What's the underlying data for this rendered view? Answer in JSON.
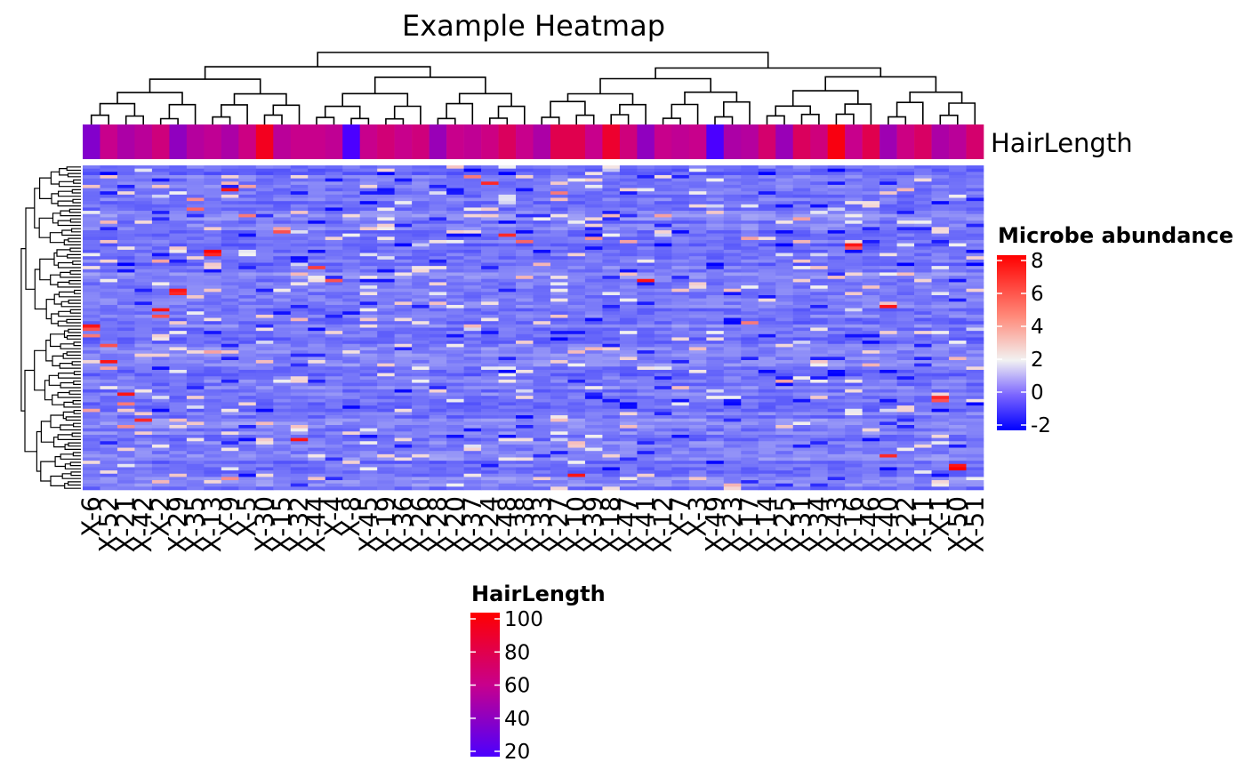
{
  "chart_data": {
    "type": "heatmap",
    "title": "Example Heatmap",
    "annotation_label": "HairLength",
    "columns": [
      "X-6",
      "X-52",
      "X-21",
      "X-42",
      "X-2",
      "X-29",
      "X-35",
      "X-13",
      "X-9",
      "X-5",
      "X-30",
      "X-15",
      "X-32",
      "X-44",
      "X-4",
      "X-8",
      "X-45",
      "X-19",
      "X-36",
      "X-26",
      "X-28",
      "X-20",
      "X-37",
      "X-24",
      "X-48",
      "X-38",
      "X-33",
      "X-27",
      "X-10",
      "X-39",
      "X-18",
      "X-47",
      "X-41",
      "X-12",
      "X-7",
      "X-3",
      "X-49",
      "X-23",
      "X-17",
      "X-14",
      "X-25",
      "X-31",
      "X-34",
      "X-43",
      "X-16",
      "X-46",
      "X-40",
      "X-22",
      "X-11",
      "X-1",
      "X-50",
      "X-51"
    ],
    "hair_length": [
      30,
      55,
      45,
      50,
      60,
      35,
      48,
      52,
      45,
      58,
      90,
      50,
      55,
      55,
      52,
      10,
      55,
      62,
      55,
      60,
      38,
      55,
      52,
      58,
      70,
      55,
      45,
      75,
      75,
      55,
      85,
      60,
      35,
      55,
      52,
      55,
      10,
      45,
      48,
      65,
      38,
      70,
      60,
      95,
      55,
      75,
      40,
      58,
      68,
      45,
      50,
      65
    ],
    "row_count": 100,
    "abundance_range": [
      -2,
      8
    ],
    "abundance_baseline": 0,
    "highlights": [
      {
        "r": 49,
        "c": 0,
        "v": 7.5
      },
      {
        "r": 50,
        "c": 0,
        "v": 6.0
      },
      {
        "r": 52,
        "c": 0,
        "v": 5.0
      },
      {
        "r": 75,
        "c": 0,
        "v": 4.0
      },
      {
        "r": 55,
        "c": 1,
        "v": 6.0
      },
      {
        "r": 60,
        "c": 1,
        "v": 7.5
      },
      {
        "r": 62,
        "c": 1,
        "v": 4.0
      },
      {
        "r": 17,
        "c": 1,
        "v": 3.5
      },
      {
        "r": 70,
        "c": 2,
        "v": 7.5
      },
      {
        "r": 73,
        "c": 2,
        "v": 5.0
      },
      {
        "r": 75,
        "c": 2,
        "v": 3.0
      },
      {
        "r": 80,
        "c": 2,
        "v": 4.5
      },
      {
        "r": 78,
        "c": 3,
        "v": 7.0
      },
      {
        "r": 76,
        "c": 3,
        "v": 3.0
      },
      {
        "r": 44,
        "c": 4,
        "v": 7.5
      },
      {
        "r": 46,
        "c": 4,
        "v": 6.0
      },
      {
        "r": 29,
        "c": 4,
        "v": 4.0
      },
      {
        "r": 38,
        "c": 5,
        "v": 7.5
      },
      {
        "r": 39,
        "c": 5,
        "v": 7.0
      },
      {
        "r": 48,
        "c": 5,
        "v": 3.0
      },
      {
        "r": 10,
        "c": 6,
        "v": 4.5
      },
      {
        "r": 13,
        "c": 6,
        "v": 5.5
      },
      {
        "r": 26,
        "c": 7,
        "v": 8.0
      },
      {
        "r": 27,
        "c": 7,
        "v": 7.0
      },
      {
        "r": 30,
        "c": 7,
        "v": 3.0
      },
      {
        "r": 57,
        "c": 7,
        "v": 4.0
      },
      {
        "r": 7,
        "c": 8,
        "v": 7.5
      },
      {
        "r": 5,
        "c": 8,
        "v": 3.5
      },
      {
        "r": 96,
        "c": 8,
        "v": 4.5
      },
      {
        "r": 15,
        "c": 9,
        "v": 5.0
      },
      {
        "r": 6,
        "c": 9,
        "v": 4.0
      },
      {
        "r": 19,
        "c": 11,
        "v": 4.0
      },
      {
        "r": 20,
        "c": 11,
        "v": 6.0
      },
      {
        "r": 47,
        "c": 12,
        "v": 3.5
      },
      {
        "r": 84,
        "c": 12,
        "v": 7.5
      },
      {
        "r": 31,
        "c": 13,
        "v": 6.5
      },
      {
        "r": 35,
        "c": 14,
        "v": 6.0
      },
      {
        "r": 23,
        "c": 25,
        "v": 5.5
      },
      {
        "r": 3,
        "c": 22,
        "v": 5.0
      },
      {
        "r": 5,
        "c": 23,
        "v": 7.0
      },
      {
        "r": 21,
        "c": 24,
        "v": 7.0
      },
      {
        "r": 30,
        "c": 26,
        "v": 3.5
      },
      {
        "r": 8,
        "c": 27,
        "v": 5.0
      },
      {
        "r": 95,
        "c": 28,
        "v": 7.5
      },
      {
        "r": 15,
        "c": 30,
        "v": 3.5
      },
      {
        "r": 22,
        "c": 29,
        "v": 4.5
      },
      {
        "r": 23,
        "c": 31,
        "v": 4.0
      },
      {
        "r": 35,
        "c": 32,
        "v": 7.5
      },
      {
        "r": 66,
        "c": 40,
        "v": 4.0
      },
      {
        "r": 15,
        "c": 33,
        "v": 4.0
      },
      {
        "r": 48,
        "c": 38,
        "v": 5.0
      },
      {
        "r": 16,
        "c": 41,
        "v": 4.0
      },
      {
        "r": 24,
        "c": 44,
        "v": 7.5
      },
      {
        "r": 25,
        "c": 44,
        "v": 6.0
      },
      {
        "r": 43,
        "c": 46,
        "v": 7.5
      },
      {
        "r": 89,
        "c": 46,
        "v": 7.0
      },
      {
        "r": 71,
        "c": 49,
        "v": 7.0
      },
      {
        "r": 72,
        "c": 49,
        "v": 6.0
      },
      {
        "r": 92,
        "c": 50,
        "v": 7.5
      },
      {
        "r": 93,
        "c": 50,
        "v": 8.0
      },
      {
        "r": 59,
        "c": 50,
        "v": 3.5
      },
      {
        "r": 22,
        "c": 38,
        "v": 4.0
      },
      {
        "r": 23,
        "c": 41,
        "v": 3.5
      },
      {
        "r": 7,
        "c": 47,
        "v": 3.5
      }
    ],
    "legends": [
      {
        "title": "Microbe abundance",
        "ticks": [
          "8",
          "6",
          "4",
          "2",
          "0",
          "-2"
        ]
      },
      {
        "title": "HairLength",
        "ticks": [
          "100",
          "80",
          "60",
          "40",
          "20"
        ]
      }
    ],
    "colors": {
      "abundance_low": "#0000ff",
      "abundance_mid": "#f2f2f2",
      "abundance_high": "#ff0000",
      "abundance_base": "#6b4bff",
      "hair_low": "#4b00ff",
      "hair_mid": "#c8008c",
      "hair_high": "#ff0000"
    }
  }
}
